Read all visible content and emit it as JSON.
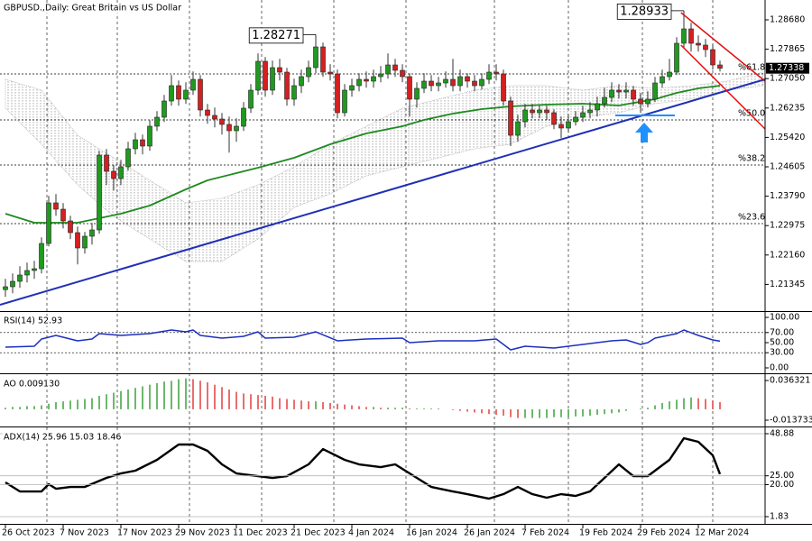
{
  "chart_data": [
    {
      "type": "candlestick",
      "title": "GBPUSD.,Daily: Great Britain vs US Dollar",
      "categories": [
        "26 Oct 2023",
        null,
        null,
        null,
        null,
        null,
        null,
        null,
        "7 Nov 2023",
        null,
        null,
        null,
        null,
        null,
        null,
        null,
        "17 Nov 2023",
        null,
        null,
        null,
        null,
        null,
        null,
        null,
        "29 Nov 2023",
        null,
        null,
        null,
        null,
        null,
        null,
        null,
        "11 Dec 2023",
        null,
        null,
        null,
        null,
        null,
        null,
        null,
        "21 Dec 2023",
        null,
        null,
        null,
        null,
        null,
        null,
        null,
        "4 Jan 2024",
        null,
        null,
        null,
        null,
        null,
        null,
        null,
        "16 Jan 2024",
        null,
        null,
        null,
        null,
        null,
        null,
        null,
        "26 Jan 2024",
        null,
        null,
        null,
        null,
        null,
        null,
        null,
        "7 Feb 2024",
        null,
        null,
        null,
        null,
        null,
        null,
        null,
        "19 Feb 2024",
        null,
        null,
        null,
        null,
        null,
        null,
        null,
        "29 Feb 2024",
        null,
        null,
        null,
        null,
        null,
        null,
        null,
        "12 Mar 2024",
        null,
        null,
        null
      ],
      "open": [
        1.212,
        1.2128,
        1.2143,
        1.21605,
        1.2173,
        1.2178,
        1.2248,
        1.23605,
        1.2343,
        1.23105,
        1.2278,
        1.22355,
        1.2268,
        1.22855,
        1.2493,
        1.2448,
        1.2428,
        1.24605,
        1.25105,
        1.25355,
        1.2518,
        1.2573,
        1.2598,
        1.2643,
        1.26855,
        1.2648,
        1.2673,
        1.2703,
        1.2618,
        1.2603,
        1.2593,
        1.2578,
        1.25605,
        1.2573,
        1.2623,
        1.2673,
        1.2753,
        1.2673,
        1.27355,
        1.2723,
        1.2648,
        1.26855,
        1.27105,
        1.27355,
        1.2793,
        1.2723,
        1.2718,
        1.26105,
        1.2673,
        1.26855,
        1.2703,
        1.2698,
        1.27105,
        1.2718,
        1.2743,
        1.2728,
        1.27105,
        1.2648,
        1.2678,
        1.2698,
        1.26855,
        1.2693,
        1.2703,
        1.26855,
        1.27105,
        1.2698,
        1.26855,
        1.2703,
        1.2723,
        1.2718,
        1.2643,
        1.2548,
        1.25855,
        1.2618,
        1.26105,
        1.2618,
        1.26105,
        1.2578,
        1.2568,
        1.25855,
        1.2598,
        1.26105,
        1.2618,
        1.26355,
        1.2653,
        1.2673,
        1.2668,
        1.2673,
        1.2648,
        1.26355,
        1.2648,
        1.2693,
        1.27105,
        1.2723,
        1.2803,
        1.2843,
        1.2803,
        1.2798,
        1.27855,
        1.2743
      ],
      "high": [
        1.215,
        1.2165,
        1.2185,
        1.2195,
        1.22,
        1.2265,
        1.238,
        1.2385,
        1.236,
        1.2325,
        1.2295,
        1.228,
        1.2305,
        1.2505,
        1.251,
        1.2465,
        1.248,
        1.253,
        1.2555,
        1.255,
        1.259,
        1.2615,
        1.266,
        1.2715,
        1.27,
        1.2695,
        1.2725,
        1.2715,
        1.2635,
        1.2625,
        1.261,
        1.26,
        1.2595,
        1.264,
        1.269,
        1.2775,
        1.2765,
        1.2755,
        1.276,
        1.2735,
        1.2705,
        1.273,
        1.2755,
        1.28271,
        1.2805,
        1.2745,
        1.273,
        1.269,
        1.2705,
        1.272,
        1.2725,
        1.273,
        1.274,
        1.2775,
        1.276,
        1.2745,
        1.272,
        1.2695,
        1.272,
        1.2715,
        1.271,
        1.2725,
        1.276,
        1.273,
        1.272,
        1.2715,
        1.272,
        1.2745,
        1.2745,
        1.273,
        1.2655,
        1.2605,
        1.2635,
        1.2635,
        1.263,
        1.263,
        1.262,
        1.26,
        1.2605,
        1.2615,
        1.263,
        1.264,
        1.2655,
        1.268,
        1.2695,
        1.269,
        1.2695,
        1.2685,
        1.2665,
        1.267,
        1.271,
        1.273,
        1.276,
        1.282,
        1.28933,
        1.286,
        1.2825,
        1.2815,
        1.28,
        1.2755
      ],
      "low": [
        1.21,
        1.211,
        1.2125,
        1.214,
        1.215,
        1.2165,
        1.224,
        1.2325,
        1.229,
        1.226,
        1.219,
        1.222,
        1.2245,
        1.2275,
        1.241,
        1.2395,
        1.241,
        1.245,
        1.2495,
        1.2495,
        1.2505,
        1.256,
        1.2585,
        1.263,
        1.263,
        1.2635,
        1.266,
        1.26,
        1.258,
        1.257,
        1.255,
        1.25,
        1.253,
        1.256,
        1.261,
        1.266,
        1.2655,
        1.266,
        1.27,
        1.263,
        1.263,
        1.2665,
        1.2695,
        1.272,
        1.271,
        1.27,
        1.2595,
        1.26,
        1.2655,
        1.267,
        1.268,
        1.268,
        1.2695,
        1.2705,
        1.271,
        1.2695,
        1.26,
        1.2625,
        1.2665,
        1.267,
        1.267,
        1.268,
        1.267,
        1.267,
        1.268,
        1.267,
        1.2675,
        1.269,
        1.27,
        1.263,
        1.2518,
        1.253,
        1.257,
        1.2595,
        1.2595,
        1.259,
        1.2565,
        1.254,
        1.2555,
        1.2575,
        1.2585,
        1.2595,
        1.26,
        1.2625,
        1.264,
        1.265,
        1.265,
        1.263,
        1.261,
        1.2625,
        1.264,
        1.268,
        1.27,
        1.2715,
        1.279,
        1.278,
        1.278,
        1.2765,
        1.273,
        1.2725
      ],
      "close": [
        1.2128,
        1.2143,
        1.21605,
        1.2173,
        1.2178,
        1.2248,
        1.23605,
        1.2343,
        1.23105,
        1.2278,
        1.22355,
        1.2268,
        1.22855,
        1.2493,
        1.2448,
        1.2428,
        1.24605,
        1.25105,
        1.25355,
        1.2518,
        1.2573,
        1.2598,
        1.2643,
        1.26855,
        1.2648,
        1.2673,
        1.2703,
        1.2618,
        1.2603,
        1.2593,
        1.2578,
        1.25605,
        1.2573,
        1.2623,
        1.2673,
        1.2753,
        1.2673,
        1.27355,
        1.2723,
        1.2648,
        1.26855,
        1.27105,
        1.27355,
        1.2793,
        1.2723,
        1.2718,
        1.26105,
        1.2673,
        1.26855,
        1.2703,
        1.2698,
        1.27105,
        1.2718,
        1.2743,
        1.2728,
        1.27105,
        1.2648,
        1.2678,
        1.2698,
        1.26855,
        1.2693,
        1.2703,
        1.26855,
        1.27105,
        1.2698,
        1.26855,
        1.2703,
        1.2723,
        1.2718,
        1.2643,
        1.2548,
        1.25855,
        1.2618,
        1.26105,
        1.2618,
        1.26105,
        1.2578,
        1.2568,
        1.25855,
        1.2598,
        1.26105,
        1.2618,
        1.26355,
        1.2653,
        1.2673,
        1.2668,
        1.2673,
        1.2648,
        1.26355,
        1.2648,
        1.2693,
        1.27105,
        1.2723,
        1.2803,
        1.2843,
        1.2803,
        1.2798,
        1.27855,
        1.2743,
        1.27338
      ],
      "colors": {
        "up": "#1f9a1f",
        "down": "#d42020"
      },
      "ylim": [
        1.20605,
        1.2923
      ],
      "yticks": [
        {
          "value": 1.2868,
          "label": "1.28680"
        },
        1.27865,
        {
          "value": 1.2705,
          "label": "1.27050"
        },
        1.26235,
        {
          "value": 1.2542,
          "label": "1.25420"
        },
        1.24605,
        {
          "value": 1.2379,
          "label": "1.23790"
        },
        1.22975,
        {
          "value": 1.2216,
          "label": "1.22160"
        },
        1.21345
      ],
      "moving_average": {
        "color": "#1e8a1e",
        "x": [
          0,
          4,
          10,
          13,
          16,
          20,
          25,
          28,
          32,
          35,
          40,
          45,
          50,
          55,
          58,
          62,
          66,
          70,
          75,
          80,
          85,
          90,
          93,
          96,
          99
        ],
        "values": [
          1.23305,
          1.23055,
          1.23055,
          1.2318,
          1.23305,
          1.2353,
          1.2398,
          1.2423,
          1.2443,
          1.2458,
          1.24855,
          1.2523,
          1.2553,
          1.2573,
          1.25905,
          1.2608,
          1.26205,
          1.2628,
          1.2633,
          1.26355,
          1.26305,
          1.2648,
          1.26655,
          1.2678,
          1.26855
        ]
      },
      "cloud": {
        "color": "#a8a8a8",
        "x": [
          0,
          5,
          10,
          15,
          20,
          25,
          30,
          35,
          40,
          45,
          50,
          55,
          60,
          65,
          70,
          75,
          80,
          85,
          90,
          95,
          100,
          105
        ],
        "upper": [
          1.2703,
          1.2673,
          1.2548,
          1.24855,
          1.2423,
          1.23605,
          1.2373,
          1.24105,
          1.24605,
          1.2523,
          1.2573,
          1.2623,
          1.2648,
          1.2673,
          1.26855,
          1.26855,
          1.2673,
          1.26855,
          1.2678,
          1.26855,
          1.2698,
          1.2723
        ],
        "lower": [
          1.2623,
          1.2523,
          1.24105,
          1.2323,
          1.22605,
          1.2198,
          1.2198,
          1.22605,
          1.2348,
          1.23855,
          1.24355,
          1.24605,
          1.24855,
          1.25105,
          1.2523,
          1.2573,
          1.2598,
          1.26105,
          1.26355,
          1.2648,
          1.2673,
          1.26855
        ]
      },
      "trendline": {
        "color": "#1f2fb5",
        "x": [
          -0.75,
          105.25
        ],
        "values": [
          1.2078,
          1.2703
        ]
      },
      "channel": [
        {
          "color": "#e01010",
          "x": [
            93.6,
            105.25
          ],
          "values": [
            1.2888,
            1.2698
          ]
        },
        {
          "color": "#e01010",
          "x": [
            93.6,
            105.25
          ],
          "values": [
            1.2798,
            1.25655
          ]
        }
      ],
      "support": {
        "color": "#1e90ff",
        "x": [
          84.5,
          92.75
        ],
        "values": [
          1.2603,
          1.2603
        ]
      },
      "fibonacci": [
        {
          "value": 1.2718,
          "label": "%61.8"
        },
        {
          "value": 1.25905,
          "label": "%50.0"
        },
        {
          "value": 1.24655,
          "label": "%38.2"
        },
        {
          "value": 1.2303,
          "label": "%23.6"
        }
      ]
    },
    {
      "type": "line",
      "title": "RSI(14) 52.93",
      "color": "#1c2fbf",
      "x": [
        0,
        4,
        5,
        7,
        10,
        12,
        13,
        16,
        20,
        23,
        25,
        26,
        27,
        30,
        33,
        35,
        36,
        40,
        43,
        46,
        50,
        55,
        56,
        60,
        65,
        68,
        69,
        70,
        72,
        76,
        80,
        84,
        86,
        88,
        89,
        90,
        93,
        94,
        96,
        98,
        99
      ],
      "values": [
        41.1,
        42.9,
        57.1,
        64.3,
        53.6,
        57.1,
        67.9,
        64.3,
        67.9,
        75.0,
        71.4,
        75.0,
        64.3,
        58.9,
        62.5,
        71.4,
        58.9,
        60.7,
        71.4,
        53.6,
        57.1,
        58.9,
        50.0,
        53.6,
        53.6,
        57.1,
        46.4,
        35.7,
        42.9,
        39.3,
        46.4,
        53.6,
        55.4,
        46.4,
        50.0,
        58.9,
        67.9,
        75.0,
        64.3,
        55.4,
        52.93
      ],
      "ylim": [
        -8.93,
        108.93
      ],
      "yticks": [
        {
          "value": 100,
          "label": "100.00"
        },
        {
          "value": 70,
          "label": "70.00"
        },
        {
          "value": 50,
          "label": "50.00"
        },
        {
          "value": 30,
          "label": "30.00"
        },
        {
          "value": 0,
          "label": "0.00"
        }
      ],
      "levels": [
        70,
        30
      ]
    },
    {
      "type": "histogram",
      "title": "AO 0.009130",
      "colors": {
        "up": "#2e9a2e",
        "down": "#e03030"
      },
      "values": [
        0.002,
        0.003,
        0.003,
        0.004,
        0.004,
        0.005,
        0.007,
        0.009,
        0.01,
        0.011,
        0.012,
        0.013,
        0.014,
        0.017,
        0.019,
        0.021,
        0.023,
        0.025,
        0.027,
        0.029,
        0.031,
        0.033,
        0.035,
        0.036,
        0.038,
        0.039,
        0.038,
        0.036,
        0.034,
        0.031,
        0.028,
        0.025,
        0.022,
        0.02,
        0.019,
        0.018,
        0.017,
        0.016,
        0.014,
        0.013,
        0.012,
        0.011,
        0.01,
        0.01,
        0.009,
        0.008,
        0.007,
        0.006,
        0.005,
        0.004,
        0.003,
        0.003,
        0.002,
        0.002,
        0.002,
        0.002,
        0.001,
        0.001,
        0.001,
        0.001,
        0.001,
        0,
        -0.001,
        -0.002,
        -0.003,
        -0.004,
        -0.005,
        -0.006,
        -0.007,
        -0.008,
        -0.01,
        -0.011,
        -0.011,
        -0.011,
        -0.011,
        -0.011,
        -0.01,
        -0.01,
        -0.01,
        -0.009,
        -0.009,
        -0.008,
        -0.007,
        -0.006,
        -0.005,
        -0.004,
        -0.002,
        0,
        0.001,
        0.002,
        0.005,
        0.008,
        0.01,
        0.012,
        0.014,
        0.015,
        0.014,
        0.013,
        0.011,
        0.00913
      ],
      "ylim": [
        -0.02056,
        0.04201
      ],
      "yticks": [
        0.036321,
        -0.013733
      ]
    },
    {
      "type": "line",
      "title": "ADX(14) 25.96 15.03 18.46",
      "color": "#000000",
      "x": [
        0,
        2,
        5,
        6,
        7,
        9,
        11,
        14,
        16,
        18,
        21,
        24,
        26,
        28,
        30,
        32,
        35,
        37,
        39,
        42,
        44,
        47,
        49,
        52,
        54,
        57,
        59,
        62,
        64,
        67,
        69,
        71,
        73,
        75,
        77,
        79,
        81,
        83,
        85,
        87,
        89,
        92,
        94,
        96,
        98,
        99
      ],
      "values": [
        21.26,
        16.14,
        16.14,
        20.24,
        17.68,
        18.7,
        18.7,
        23.82,
        26.37,
        27.91,
        34.05,
        42.74,
        42.74,
        39.16,
        31.49,
        26.37,
        24.84,
        23.82,
        24.84,
        31.49,
        40.18,
        34.05,
        31.49,
        29.95,
        31.49,
        23.82,
        18.7,
        16.14,
        14.61,
        12.05,
        14.61,
        18.7,
        14.61,
        12.56,
        14.61,
        13.59,
        16.14,
        23.82,
        31.49,
        24.84,
        24.84,
        34.05,
        46.32,
        44.28,
        36.6,
        25.96
      ],
      "ylim": [
        -1.75,
        51.44
      ],
      "yticks": [
        48.88,
        {
          "value": 25,
          "label": "25.00"
        },
        {
          "value": 20,
          "label": "20.00"
        },
        1.83
      ],
      "grid": true
    }
  ]
}
